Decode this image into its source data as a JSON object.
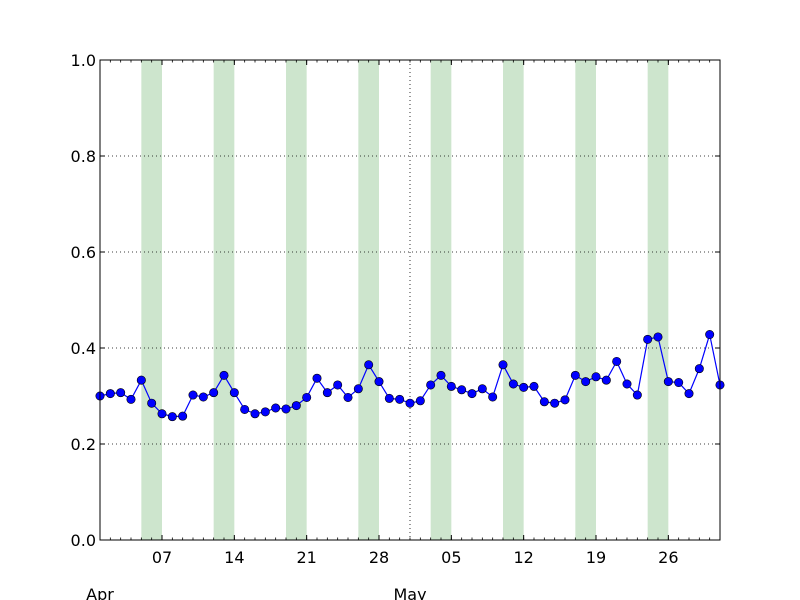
{
  "chart_data": {
    "type": "line",
    "x_start": "2014-04-01",
    "x_end": "2014-05-31",
    "ylim": [
      0,
      1
    ],
    "y_ticks": [
      "0.0",
      "0.2",
      "0.4",
      "0.6",
      "0.8",
      "1.0"
    ],
    "x_ticks": [
      {
        "date": "2014-04-07",
        "label": "07"
      },
      {
        "date": "2014-04-14",
        "label": "14"
      },
      {
        "date": "2014-04-21",
        "label": "21"
      },
      {
        "date": "2014-04-28",
        "label": "28"
      },
      {
        "date": "2014-05-05",
        "label": "05"
      },
      {
        "date": "2014-05-12",
        "label": "12"
      },
      {
        "date": "2014-05-19",
        "label": "19"
      },
      {
        "date": "2014-05-26",
        "label": "26"
      }
    ],
    "month_labels": [
      {
        "date": "2014-04-01",
        "label": "Apr"
      },
      {
        "date": "2014-05-01",
        "label": "May"
      }
    ],
    "month_gridline": "2014-05-01",
    "grid": true,
    "shaded_bands": [
      [
        "2014-04-05",
        "2014-04-07"
      ],
      [
        "2014-04-12",
        "2014-04-14"
      ],
      [
        "2014-04-19",
        "2014-04-21"
      ],
      [
        "2014-04-26",
        "2014-04-28"
      ],
      [
        "2014-05-03",
        "2014-05-05"
      ],
      [
        "2014-05-10",
        "2014-05-12"
      ],
      [
        "2014-05-17",
        "2014-05-19"
      ],
      [
        "2014-05-24",
        "2014-05-26"
      ]
    ],
    "series": [
      {
        "color": "#0000ff",
        "band_color": "#cde5cd",
        "points": [
          [
            "2014-04-01",
            0.3
          ],
          [
            "2014-04-02",
            0.305
          ],
          [
            "2014-04-03",
            0.307
          ],
          [
            "2014-04-04",
            0.293
          ],
          [
            "2014-04-05",
            0.333
          ],
          [
            "2014-04-06",
            0.285
          ],
          [
            "2014-04-07",
            0.263
          ],
          [
            "2014-04-08",
            0.257
          ],
          [
            "2014-04-09",
            0.258
          ],
          [
            "2014-04-10",
            0.302
          ],
          [
            "2014-04-11",
            0.298
          ],
          [
            "2014-04-12",
            0.307
          ],
          [
            "2014-04-13",
            0.343
          ],
          [
            "2014-04-14",
            0.307
          ],
          [
            "2014-04-15",
            0.272
          ],
          [
            "2014-04-16",
            0.263
          ],
          [
            "2014-04-17",
            0.267
          ],
          [
            "2014-04-18",
            0.275
          ],
          [
            "2014-04-19",
            0.273
          ],
          [
            "2014-04-20",
            0.28
          ],
          [
            "2014-04-21",
            0.297
          ],
          [
            "2014-04-22",
            0.337
          ],
          [
            "2014-04-23",
            0.307
          ],
          [
            "2014-04-24",
            0.323
          ],
          [
            "2014-04-25",
            0.297
          ],
          [
            "2014-04-26",
            0.315
          ],
          [
            "2014-04-27",
            0.365
          ],
          [
            "2014-04-28",
            0.33
          ],
          [
            "2014-04-29",
            0.295
          ],
          [
            "2014-04-30",
            0.293
          ],
          [
            "2014-05-01",
            0.285
          ],
          [
            "2014-05-02",
            0.29
          ],
          [
            "2014-05-03",
            0.323
          ],
          [
            "2014-05-04",
            0.343
          ],
          [
            "2014-05-05",
            0.32
          ],
          [
            "2014-05-06",
            0.313
          ],
          [
            "2014-05-07",
            0.305
          ],
          [
            "2014-05-08",
            0.315
          ],
          [
            "2014-05-09",
            0.298
          ],
          [
            "2014-05-10",
            0.365
          ],
          [
            "2014-05-11",
            0.325
          ],
          [
            "2014-05-12",
            0.318
          ],
          [
            "2014-05-13",
            0.32
          ],
          [
            "2014-05-14",
            0.288
          ],
          [
            "2014-05-15",
            0.285
          ],
          [
            "2014-05-16",
            0.292
          ],
          [
            "2014-05-17",
            0.343
          ],
          [
            "2014-05-18",
            0.33
          ],
          [
            "2014-05-19",
            0.34
          ],
          [
            "2014-05-20",
            0.333
          ],
          [
            "2014-05-21",
            0.372
          ],
          [
            "2014-05-22",
            0.325
          ],
          [
            "2014-05-23",
            0.302
          ],
          [
            "2014-05-24",
            0.418
          ],
          [
            "2014-05-25",
            0.423
          ],
          [
            "2014-05-26",
            0.33
          ],
          [
            "2014-05-27",
            0.328
          ],
          [
            "2014-05-28",
            0.305
          ],
          [
            "2014-05-29",
            0.357
          ],
          [
            "2014-05-30",
            0.428
          ],
          [
            "2014-05-31",
            0.323
          ]
        ]
      }
    ]
  }
}
